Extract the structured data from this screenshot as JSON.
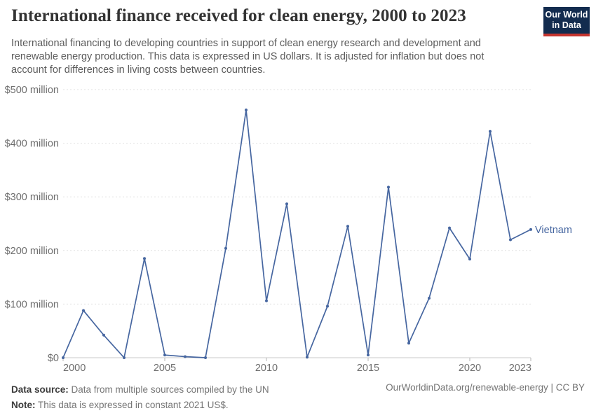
{
  "header": {
    "title": "International finance received for clean energy, 2000 to 2023",
    "subtitle": "International financing to developing countries in support of clean energy research and development and renewable energy production. This data is expressed in US dollars. It is adjusted for inflation but does not account for differences in living costs between countries.",
    "logo": {
      "line1": "Our World",
      "line2": "in Data",
      "bg_color": "#132c4f",
      "accent_color": "#c5352f"
    }
  },
  "chart_data": {
    "type": "line",
    "title": "International finance received for clean energy, 2000 to 2023",
    "x": [
      2000,
      2001,
      2002,
      2003,
      2004,
      2005,
      2006,
      2007,
      2008,
      2009,
      2010,
      2011,
      2012,
      2013,
      2014,
      2015,
      2016,
      2017,
      2018,
      2019,
      2020,
      2021,
      2022,
      2023
    ],
    "series": [
      {
        "name": "Vietnam",
        "color": "#4666A0",
        "values": [
          0,
          88,
          42,
          0,
          185,
          5,
          2,
          0,
          204,
          462,
          106,
          287,
          1,
          96,
          245,
          5,
          318,
          27,
          111,
          242,
          184,
          422,
          220,
          239
        ]
      }
    ],
    "unit": "US$ million (constant 2021 US$)",
    "ylim": [
      0,
      500
    ],
    "yticks": [
      {
        "value": 0,
        "label": "$0"
      },
      {
        "value": 100,
        "label": "$100 million"
      },
      {
        "value": 200,
        "label": "$200 million"
      },
      {
        "value": 300,
        "label": "$300 million"
      },
      {
        "value": 400,
        "label": "$400 million"
      },
      {
        "value": 500,
        "label": "$500 million"
      }
    ],
    "xticks": [
      {
        "value": 2000,
        "label": "2000"
      },
      {
        "value": 2005,
        "label": "2005"
      },
      {
        "value": 2010,
        "label": "2010"
      },
      {
        "value": 2015,
        "label": "2015"
      },
      {
        "value": 2020,
        "label": "2020"
      },
      {
        "value": 2023,
        "label": "2023"
      }
    ],
    "grid": "horizontal dashed",
    "legend_position": "end-of-line label"
  },
  "footer": {
    "source_label": "Data source:",
    "source_text": " Data from multiple sources compiled by the UN",
    "note_label": "Note:",
    "note_text": " This data is expressed in constant 2021 US$.",
    "link": "OurWorldinData.org/renewable-energy | CC BY"
  },
  "style": {
    "line_color": "#4666A0",
    "gridline_color": "#e0e0e0",
    "axis_color": "#c8c8c8",
    "tick_color": "#b4b4b4",
    "tick_label_color": "#6e6e6e"
  }
}
